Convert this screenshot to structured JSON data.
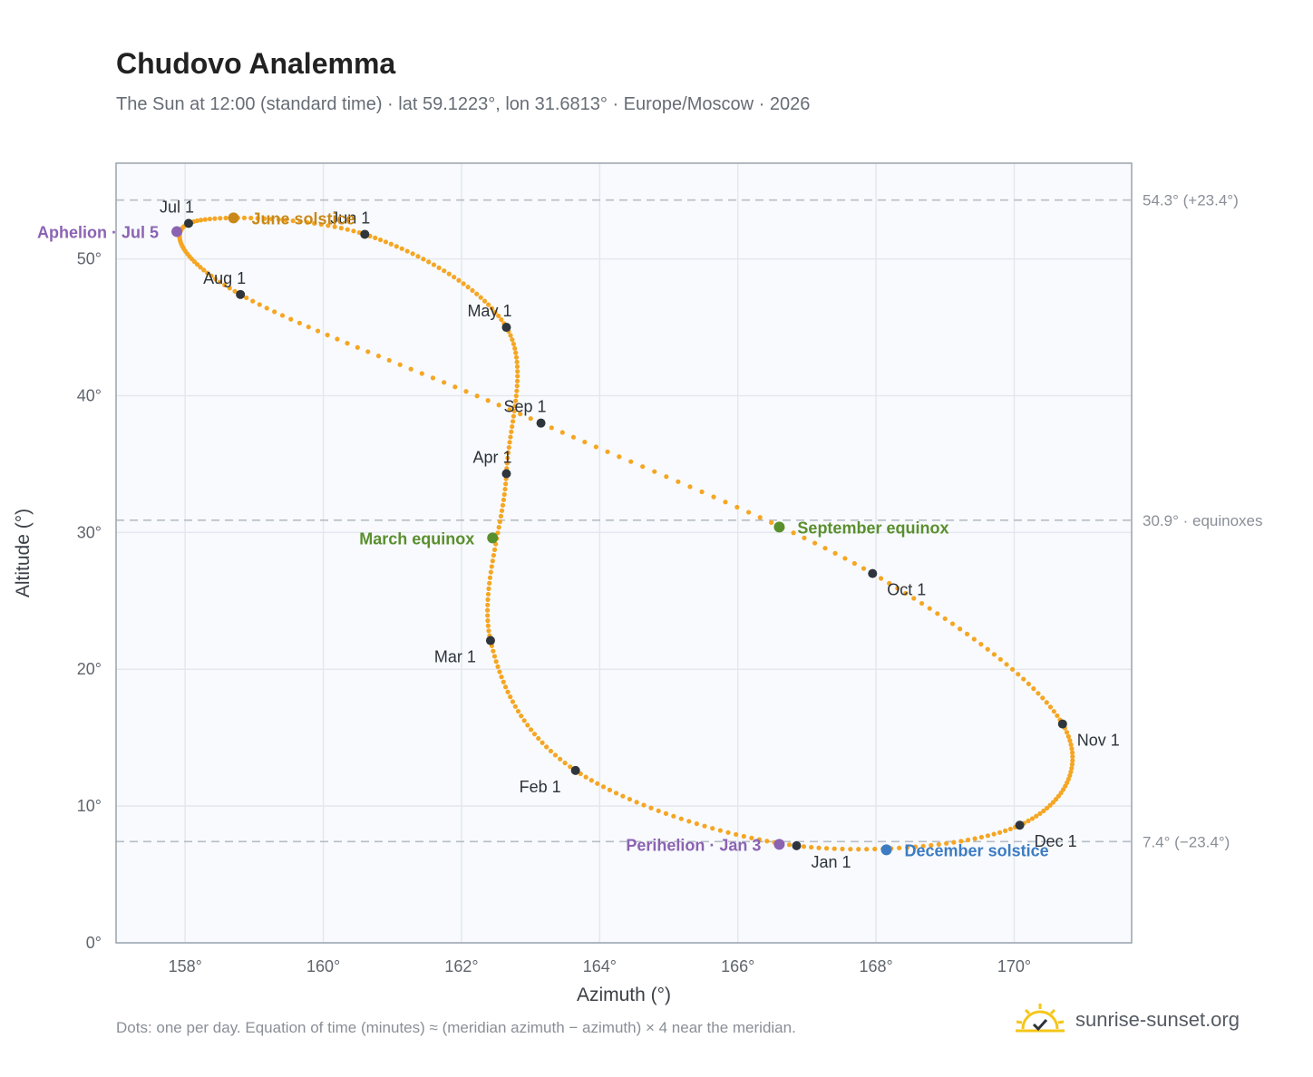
{
  "title": "Chudovo Analemma",
  "subtitle": "The Sun at 12:00 (standard time) · lat 59.1223°, lon 31.6813° · Europe/Moscow · 2026",
  "footnote": "Dots: one per day. Equation of time (minutes) ≈ (meridian azimuth − azimuth) × 4 near the meridian.",
  "brand": {
    "name": "sunrise-sunset.org",
    "icon": "sun-logo-icon",
    "color": "#f5c518"
  },
  "chart_data": {
    "type": "scatter",
    "xlabel": "Azimuth (°)",
    "ylabel": "Altitude (°)",
    "xlim": [
      157,
      171.7
    ],
    "ylim": [
      0,
      57
    ],
    "grid": true,
    "xticks": [
      158,
      160,
      162,
      164,
      166,
      168,
      170
    ],
    "xtick_labels": [
      "158°",
      "160°",
      "162°",
      "164°",
      "166°",
      "168°",
      "170°"
    ],
    "yticks": [
      0,
      10,
      20,
      30,
      40,
      50
    ],
    "ytick_labels": [
      "0°",
      "10°",
      "20°",
      "30°",
      "40°",
      "50°"
    ],
    "colors": {
      "path": "#f5a623",
      "month": "#2f353d",
      "solstice_june": "#c9891a",
      "solstice_dec": "#3d7cc2",
      "equinox": "#5a8f2e",
      "apsis": "#8b63b3",
      "refline": "#b8bec6",
      "plot_bg": "#f8fafd",
      "grid": "#e4e8ee"
    },
    "reference_lines": [
      {
        "y": 54.3,
        "label": "54.3° (+23.4°)"
      },
      {
        "y": 30.9,
        "label": "30.9° · equinoxes"
      },
      {
        "y": 7.4,
        "label": "7.4° (−23.4°)"
      }
    ],
    "path_anchors": [
      {
        "date": "Jan 1",
        "az": 166.85,
        "alt": 7.1
      },
      {
        "date": "Feb 1",
        "az": 163.65,
        "alt": 12.6
      },
      {
        "date": "Mar 1",
        "az": 162.42,
        "alt": 22.1
      },
      {
        "date": "Apr 1",
        "az": 162.65,
        "alt": 34.3
      },
      {
        "date": "May 1",
        "az": 162.65,
        "alt": 45.0
      },
      {
        "date": "Jun 1",
        "az": 160.6,
        "alt": 51.8
      },
      {
        "date": "Jul 1",
        "az": 158.05,
        "alt": 52.6
      },
      {
        "date": "Aug 1",
        "az": 158.8,
        "alt": 47.4
      },
      {
        "date": "Sep 1",
        "az": 163.15,
        "alt": 38.0
      },
      {
        "date": "Oct 1",
        "az": 167.95,
        "alt": 27.0
      },
      {
        "date": "Nov 1",
        "az": 170.7,
        "alt": 16.0
      },
      {
        "date": "Dec 1",
        "az": 170.08,
        "alt": 8.6
      }
    ],
    "months": [
      {
        "label": "Jan 1",
        "az": 166.85,
        "alt": 7.1,
        "pos": "below-right"
      },
      {
        "label": "Feb 1",
        "az": 163.65,
        "alt": 12.6,
        "pos": "below-left"
      },
      {
        "label": "Mar 1",
        "az": 162.42,
        "alt": 22.1,
        "pos": "below-left"
      },
      {
        "label": "Apr 1",
        "az": 162.65,
        "alt": 34.3,
        "pos": "above-left"
      },
      {
        "label": "May 1",
        "az": 162.65,
        "alt": 45.0,
        "pos": "above-left"
      },
      {
        "label": "Jun 1",
        "az": 160.6,
        "alt": 51.8,
        "pos": "above-left"
      },
      {
        "label": "Jul 1",
        "az": 158.05,
        "alt": 52.6,
        "pos": "above-left"
      },
      {
        "label": "Aug 1",
        "az": 158.8,
        "alt": 47.4,
        "pos": "above-left"
      },
      {
        "label": "Sep 1",
        "az": 163.15,
        "alt": 38.0,
        "pos": "above-left"
      },
      {
        "label": "Oct 1",
        "az": 167.95,
        "alt": 27.0,
        "pos": "below-right"
      },
      {
        "label": "Nov 1",
        "az": 170.7,
        "alt": 16.0,
        "pos": "below-right"
      },
      {
        "label": "Dec 1",
        "az": 170.08,
        "alt": 8.6,
        "pos": "below-right"
      }
    ],
    "events": [
      {
        "label": "June solstice",
        "az": 158.7,
        "alt": 53.0,
        "kind": "solstice_june",
        "side": "right"
      },
      {
        "label": "December solstice",
        "az": 168.15,
        "alt": 6.8,
        "kind": "solstice_dec",
        "side": "right"
      },
      {
        "label": "March equinox",
        "az": 162.45,
        "alt": 29.6,
        "kind": "equinox",
        "side": "left"
      },
      {
        "label": "September equinox",
        "az": 166.6,
        "alt": 30.4,
        "kind": "equinox",
        "side": "right"
      },
      {
        "label": "Aphelion · Jul 5",
        "az": 157.88,
        "alt": 52.0,
        "kind": "apsis",
        "side": "left"
      },
      {
        "label": "Perihelion · Jan 3",
        "az": 166.6,
        "alt": 7.2,
        "kind": "apsis",
        "side": "left"
      }
    ]
  }
}
